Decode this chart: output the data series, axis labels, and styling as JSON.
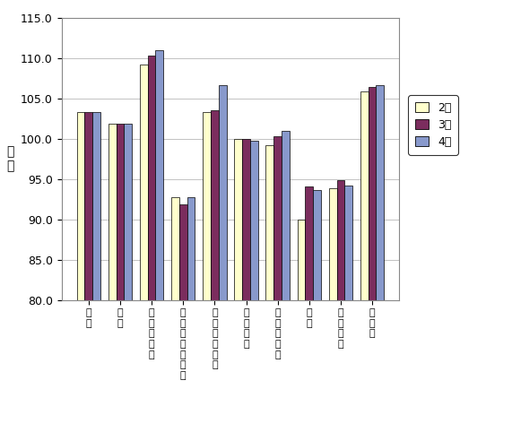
{
  "categories": [
    "食料",
    "住居",
    "光熱・水道",
    "家具・家事用品",
    "被服及び履物",
    "保健医療",
    "交通・通信",
    "教育",
    "教養娯楽",
    "諸雑費"
  ],
  "series": {
    "2月": [
      103.3,
      101.8,
      109.2,
      92.7,
      103.3,
      100.0,
      99.2,
      90.0,
      93.8,
      105.8
    ],
    "3月": [
      103.3,
      101.8,
      110.3,
      91.8,
      103.5,
      100.0,
      100.3,
      94.1,
      94.8,
      106.4
    ],
    "4月": [
      103.3,
      101.9,
      111.0,
      92.7,
      106.6,
      99.7,
      101.0,
      93.6,
      94.2,
      106.6
    ]
  },
  "colors": {
    "2月": "#FFFFCC",
    "3月": "#7B2D5E",
    "4月": "#8899CC"
  },
  "ylabel": "指\n数",
  "ylim": [
    80.0,
    115.0
  ],
  "yticks": [
    80.0,
    85.0,
    90.0,
    95.0,
    100.0,
    105.0,
    110.0,
    115.0
  ],
  "ytick_labels": [
    "80.0",
    "85.0",
    "90.0",
    "95.0",
    "100.0",
    "105.0",
    "110.0",
    "115.0"
  ],
  "legend_labels": [
    "2月",
    "3月",
    "4月"
  ],
  "bar_width": 0.25,
  "background_color": "#ffffff",
  "plot_background_color": "#ffffff",
  "grid_color": "#aaaaaa",
  "border_color": "#000000",
  "x_label_chars": {
    "食料": "食料",
    "住居": "住居",
    "光熱・水道": "光熱・\n水道",
    "家具・家事用品": "家具・家事用\n品",
    "被服及び履物": "被服及び\n履物",
    "保健医療": "保健医療",
    "交通・通信": "交通・\n通信",
    "教育": "教育",
    "教養娯楽": "教養娯\n楽",
    "諸雑費": "諸雑費"
  }
}
